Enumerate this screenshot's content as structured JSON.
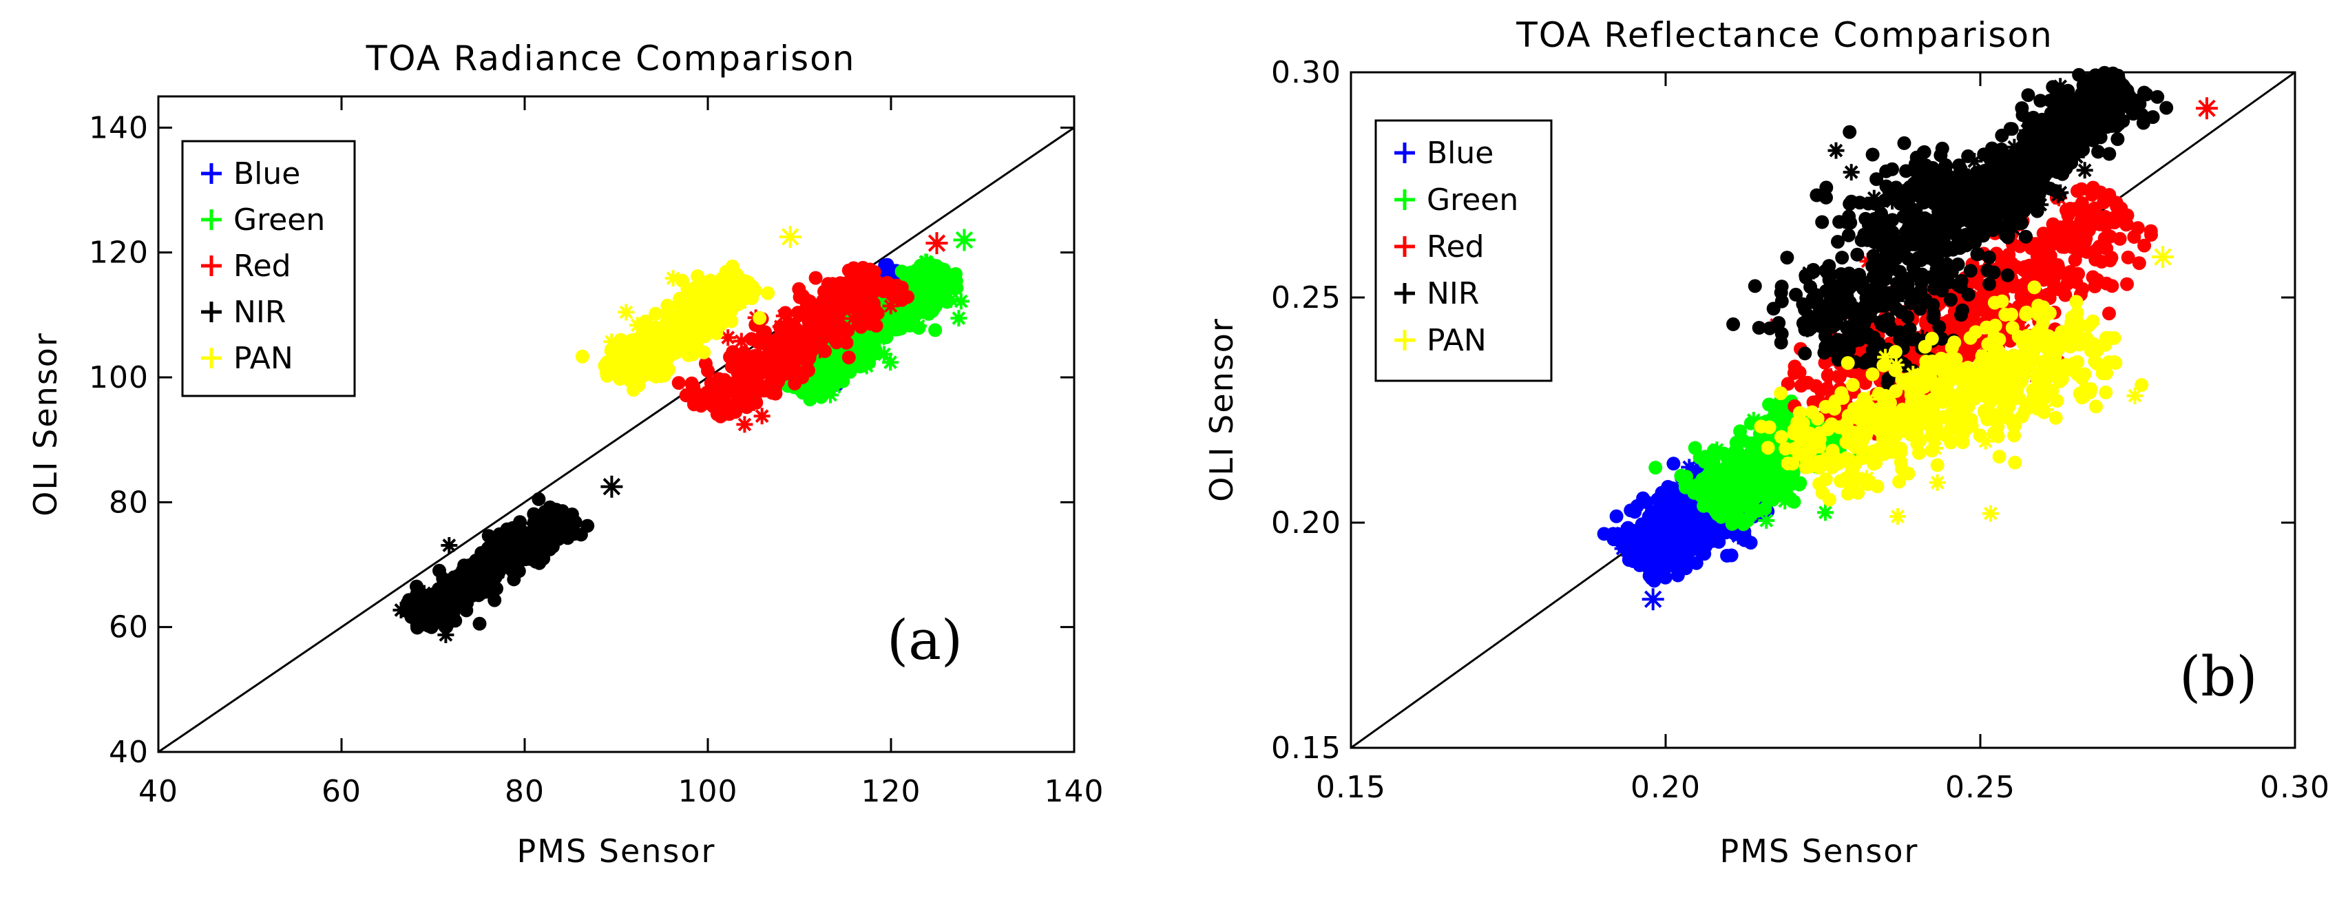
{
  "chart_data": [
    {
      "type": "scatter",
      "title": "TOA Radiance Comparison",
      "xlabel": "PMS Sensor",
      "ylabel": "OLI Sensor",
      "xlim": [
        40,
        140
      ],
      "ylim": [
        40,
        145
      ],
      "xticks": [
        40,
        60,
        80,
        100,
        120,
        140
      ],
      "yticks": [
        40,
        60,
        80,
        100,
        120,
        140
      ],
      "xtick_labels": [
        "40",
        "60",
        "80",
        "100",
        "120",
        "140"
      ],
      "ytick_labels": [
        "40",
        "60",
        "80",
        "100",
        "120",
        "140"
      ],
      "reference_line": "1:1",
      "panel_label": "(a)",
      "legend_position": "top-left",
      "series": [
        {
          "name": "Blue",
          "color": "#0000ff",
          "clusters": [
            [
              [
                112,
                100
              ],
              [
                121,
                117
              ],
              2
            ]
          ],
          "outliers": [
            [
              121,
              116
            ]
          ]
        },
        {
          "name": "Green",
          "color": "#00ff00",
          "clusters": [
            [
              [
                110,
                98
              ],
              [
                118,
                108
              ],
              2.5
            ],
            [
              [
                118,
                108
              ],
              [
                126,
                117
              ],
              2.5
            ]
          ],
          "outliers": [
            [
              128,
              122
            ]
          ]
        },
        {
          "name": "Red",
          "color": "#ff0000",
          "clusters": [
            [
              [
                100,
                95
              ],
              [
                119,
                116
              ],
              3.5
            ]
          ],
          "outliers": [
            [
              125,
              121.5
            ]
          ]
        },
        {
          "name": "NIR",
          "color": "#000000",
          "clusters": [
            [
              [
                68,
                61
              ],
              [
                85,
                78
              ],
              2.5
            ]
          ],
          "outliers": [
            [
              89.5,
              82.5
            ]
          ]
        },
        {
          "name": "PAN",
          "color": "#ffff00",
          "clusters": [
            [
              [
                90,
                100
              ],
              [
                104,
                116
              ],
              3
            ]
          ],
          "outliers": [
            [
              109,
              122.5
            ]
          ]
        }
      ]
    },
    {
      "type": "scatter",
      "title": "TOA Reflectance Comparison",
      "xlabel": "PMS Sensor",
      "ylabel": "OLI Sensor",
      "xlim": [
        0.15,
        0.3
      ],
      "ylim": [
        0.15,
        0.3
      ],
      "xticks": [
        0.15,
        0.2,
        0.25,
        0.3
      ],
      "yticks": [
        0.15,
        0.2,
        0.25,
        0.3
      ],
      "xtick_labels": [
        "0.15",
        "0.20",
        "0.25",
        "0.30"
      ],
      "ytick_labels": [
        "0.15",
        "0.20",
        "0.25",
        "0.30"
      ],
      "reference_line": "1:1",
      "panel_label": "(b)",
      "legend_position": "top-left",
      "series": [
        {
          "name": "Blue",
          "color": "#0000ff",
          "clusters": [
            [
              [
                0.195,
                0.192
              ],
              [
                0.212,
                0.207
              ],
              0.006
            ]
          ],
          "outliers": [
            [
              0.198,
              0.183
            ]
          ]
        },
        {
          "name": "Green",
          "color": "#00ff00",
          "clusters": [
            [
              [
                0.207,
                0.204
              ],
              [
                0.224,
                0.222
              ],
              0.006
            ]
          ],
          "outliers": []
        },
        {
          "name": "Red",
          "color": "#ff0000",
          "clusters": [
            [
              [
                0.225,
                0.224
              ],
              [
                0.272,
                0.268
              ],
              0.009
            ]
          ],
          "outliers": [
            [
              0.286,
              0.292
            ]
          ]
        },
        {
          "name": "NIR",
          "color": "#000000",
          "clusters": [
            [
              [
                0.226,
                0.238
              ],
              [
                0.248,
                0.278
              ],
              0.012
            ],
            [
              [
                0.248,
                0.268
              ],
              [
                0.273,
                0.298
              ],
              0.006
            ]
          ],
          "outliers": []
        },
        {
          "name": "PAN",
          "color": "#ffff00",
          "clusters": [
            [
              [
                0.222,
                0.212
              ],
              [
                0.268,
                0.242
              ],
              0.01
            ]
          ],
          "outliers": [
            [
              0.279,
              0.259
            ]
          ]
        }
      ]
    }
  ]
}
